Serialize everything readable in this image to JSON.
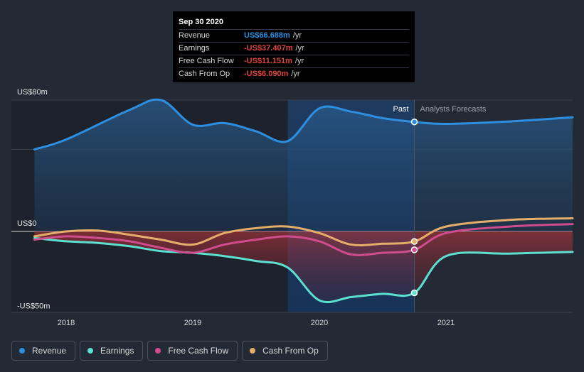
{
  "tooltip": {
    "date": "Sep 30 2020",
    "rows": [
      {
        "label": "Revenue",
        "value": "US$66.688m",
        "unit": "/yr",
        "color": "#2e8fe0"
      },
      {
        "label": "Earnings",
        "value": "-US$37.407m",
        "unit": "/yr",
        "color": "#e0443c"
      },
      {
        "label": "Free Cash Flow",
        "value": "-US$11.151m",
        "unit": "/yr",
        "color": "#e0443c"
      },
      {
        "label": "Cash From Op",
        "value": "-US$6.090m",
        "unit": "/yr",
        "color": "#e0443c"
      }
    ]
  },
  "labels": {
    "past": "Past",
    "forecast": "Analysts Forecasts"
  },
  "legend": [
    {
      "label": "Revenue",
      "color": "#2e8fe0"
    },
    {
      "label": "Earnings",
      "color": "#5ce0d0"
    },
    {
      "label": "Free Cash Flow",
      "color": "#cf4d8c"
    },
    {
      "label": "Cash From Op",
      "color": "#e5ad6a"
    }
  ],
  "chart_data": {
    "type": "line",
    "ylim": [
      -50,
      80
    ],
    "y_tick_labels": [
      {
        "value": 80,
        "label": "US$80m"
      },
      {
        "value": 0,
        "label": "US$0"
      },
      {
        "value": -50,
        "label": "-US$50m"
      }
    ],
    "x_range": [
      2017.6,
      2022.0
    ],
    "x_ticks": [
      2018,
      2019,
      2020,
      2021
    ],
    "past_end": 2020.75,
    "highlight_start": 2019.75,
    "series": [
      {
        "name": "Revenue",
        "color": "#2e8fe0",
        "x": [
          2017.75,
          2018.0,
          2018.5,
          2018.75,
          2019.0,
          2019.25,
          2019.5,
          2019.75,
          2020.0,
          2020.25,
          2020.5,
          2020.75,
          2021.0,
          2021.5,
          2022.0
        ],
        "y": [
          50,
          56,
          74,
          80,
          65,
          66,
          61,
          55,
          75,
          73,
          69,
          66.7,
          65.5,
          67,
          69.5
        ]
      },
      {
        "name": "Earnings",
        "color": "#5ce0d0",
        "x": [
          2017.75,
          2018.0,
          2018.25,
          2018.5,
          2018.75,
          2019.0,
          2019.25,
          2019.5,
          2019.75,
          2020.0,
          2020.25,
          2020.5,
          2020.75,
          2021.0,
          2021.5,
          2022.0
        ],
        "y": [
          -4,
          -6,
          -7,
          -9,
          -12,
          -13,
          -15,
          -18,
          -22,
          -42,
          -40,
          -38,
          -37.4,
          -15,
          -13.5,
          -12.5
        ]
      },
      {
        "name": "Free Cash Flow",
        "color": "#cf4d8c",
        "x": [
          2017.75,
          2018.0,
          2018.25,
          2018.5,
          2018.75,
          2019.0,
          2019.25,
          2019.5,
          2019.75,
          2020.0,
          2020.25,
          2020.5,
          2020.75,
          2021.0,
          2021.5,
          2022.0
        ],
        "y": [
          -5,
          -3,
          -4,
          -6,
          -10,
          -13,
          -8,
          -5,
          -3,
          -6,
          -14,
          -13,
          -11.2,
          -1,
          3,
          4.5
        ]
      },
      {
        "name": "Cash From Op",
        "color": "#e5ad6a",
        "x": [
          2017.75,
          2018.0,
          2018.25,
          2018.5,
          2018.75,
          2019.0,
          2019.25,
          2019.5,
          2019.75,
          2020.0,
          2020.25,
          2020.5,
          2020.75,
          2021.0,
          2021.5,
          2022.0
        ],
        "y": [
          -3,
          0,
          0.5,
          -2,
          -5,
          -8,
          -1,
          2,
          3,
          -1,
          -8,
          -7.5,
          -6.1,
          3,
          7,
          8
        ]
      }
    ]
  }
}
